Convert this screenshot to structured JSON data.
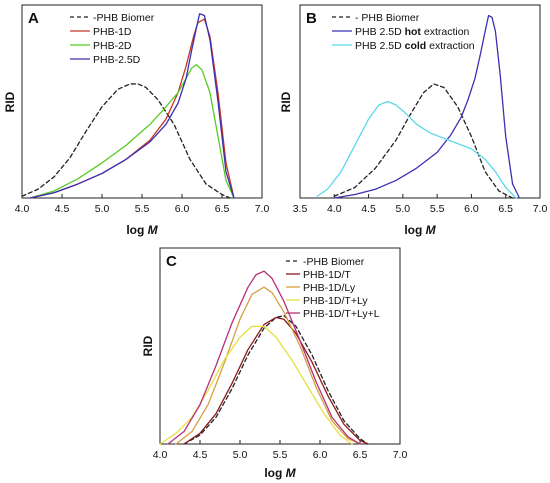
{
  "chart_data": [
    {
      "panel": "A",
      "type": "line",
      "xlabel_prefix": "log",
      "xlabel_var": "M",
      "ylabel": "RID",
      "xlim": [
        4.0,
        7.0
      ],
      "xticks": [
        "4.0",
        "4.5",
        "5.0",
        "5.5",
        "6.0",
        "6.5",
        "7.0"
      ],
      "legend_position": "top-left",
      "series": [
        {
          "name": "-PHB Biomer",
          "color": "#222222",
          "dash": true,
          "x": [
            4.0,
            4.2,
            4.4,
            4.6,
            4.8,
            5.0,
            5.2,
            5.35,
            5.45,
            5.55,
            5.7,
            5.9,
            6.1,
            6.3,
            6.5,
            6.6
          ],
          "y": [
            0.01,
            0.05,
            0.12,
            0.23,
            0.38,
            0.52,
            0.62,
            0.65,
            0.65,
            0.63,
            0.56,
            0.42,
            0.22,
            0.08,
            0.02,
            0.0
          ]
        },
        {
          "name": "PHB-1D",
          "color": "#c0392b",
          "dash": false,
          "x": [
            4.1,
            4.4,
            4.7,
            5.0,
            5.3,
            5.6,
            5.8,
            5.95,
            6.05,
            6.15,
            6.2,
            6.28,
            6.35,
            6.45,
            6.55,
            6.65
          ],
          "y": [
            0.0,
            0.03,
            0.08,
            0.14,
            0.22,
            0.33,
            0.45,
            0.6,
            0.75,
            0.93,
            1.0,
            1.02,
            0.92,
            0.6,
            0.2,
            0.0
          ]
        },
        {
          "name": "PHB-2D",
          "color": "#55cc22",
          "dash": false,
          "x": [
            4.1,
            4.4,
            4.7,
            5.0,
            5.3,
            5.6,
            5.8,
            5.95,
            6.05,
            6.12,
            6.18,
            6.25,
            6.35,
            6.45,
            6.55,
            6.65
          ],
          "y": [
            0.0,
            0.04,
            0.11,
            0.2,
            0.3,
            0.42,
            0.52,
            0.6,
            0.68,
            0.74,
            0.76,
            0.73,
            0.6,
            0.35,
            0.1,
            0.0
          ]
        },
        {
          "name": "PHB-2.5D",
          "color": "#3b30b5",
          "dash": false,
          "x": [
            4.1,
            4.4,
            4.7,
            5.0,
            5.3,
            5.6,
            5.8,
            5.95,
            6.05,
            6.12,
            6.18,
            6.22,
            6.28,
            6.35,
            6.45,
            6.55,
            6.65
          ],
          "y": [
            0.0,
            0.03,
            0.08,
            0.14,
            0.22,
            0.32,
            0.42,
            0.54,
            0.68,
            0.84,
            0.97,
            1.05,
            1.04,
            0.9,
            0.55,
            0.15,
            0.0
          ]
        }
      ]
    },
    {
      "panel": "B",
      "type": "line",
      "xlabel_prefix": "log",
      "xlabel_var": "M",
      "ylabel": "RID",
      "xlim": [
        3.5,
        7.0
      ],
      "xticks": [
        "3.5",
        "4.0",
        "4.5",
        "5.0",
        "5.5",
        "6.0",
        "6.5",
        "7.0"
      ],
      "legend_position": "top-left",
      "series": [
        {
          "name": "PHB Biomer",
          "prefix": "- ",
          "color": "#222222",
          "dash": true,
          "x": [
            4.0,
            4.3,
            4.6,
            4.9,
            5.1,
            5.3,
            5.45,
            5.6,
            5.8,
            6.0,
            6.2,
            6.4,
            6.6
          ],
          "y": [
            0.01,
            0.06,
            0.17,
            0.33,
            0.47,
            0.6,
            0.65,
            0.63,
            0.52,
            0.35,
            0.15,
            0.04,
            0.0
          ]
        },
        {
          "name": "PHB 2.5D ",
          "bold": "hot",
          "suffix": " extraction",
          "color": "#3b30b5",
          "dash": false,
          "x": [
            4.0,
            4.3,
            4.6,
            4.9,
            5.2,
            5.5,
            5.7,
            5.85,
            5.95,
            6.05,
            6.12,
            6.2,
            6.25,
            6.3,
            6.35,
            6.42,
            6.5,
            6.6,
            6.7
          ],
          "y": [
            0.0,
            0.02,
            0.05,
            0.1,
            0.17,
            0.26,
            0.36,
            0.46,
            0.56,
            0.68,
            0.8,
            0.95,
            1.04,
            1.03,
            0.95,
            0.7,
            0.35,
            0.08,
            0.0
          ]
        },
        {
          "name": "PHB 2.5D ",
          "bold": "cold",
          "suffix": " extraction",
          "color": "#5bd8e8",
          "dash": false,
          "x": [
            3.75,
            3.9,
            4.1,
            4.3,
            4.5,
            4.65,
            4.78,
            4.9,
            5.05,
            5.2,
            5.4,
            5.6,
            5.8,
            6.0,
            6.2,
            6.35,
            6.5,
            6.65
          ],
          "y": [
            0.01,
            0.05,
            0.15,
            0.3,
            0.45,
            0.53,
            0.55,
            0.53,
            0.48,
            0.42,
            0.37,
            0.34,
            0.31,
            0.28,
            0.22,
            0.15,
            0.06,
            0.0
          ]
        }
      ]
    },
    {
      "panel": "C",
      "type": "line",
      "xlabel_prefix": "log",
      "xlabel_var": "M",
      "ylabel": "RID",
      "xlim": [
        4.0,
        7.0
      ],
      "xticks": [
        "4.0",
        "4.5",
        "5.0",
        "5.5",
        "6.0",
        "6.5",
        "7.0"
      ],
      "legend_position": "top-right",
      "series": [
        {
          "name": "-PHB Biomer",
          "color": "#222222",
          "dash": true,
          "x": [
            4.3,
            4.5,
            4.7,
            4.9,
            5.1,
            5.3,
            5.45,
            5.55,
            5.7,
            5.9,
            6.1,
            6.3,
            6.5,
            6.6
          ],
          "y": [
            0.0,
            0.05,
            0.15,
            0.31,
            0.5,
            0.65,
            0.71,
            0.72,
            0.66,
            0.5,
            0.3,
            0.13,
            0.03,
            0.0
          ]
        },
        {
          "name": "PHB-1D/T",
          "color": "#8b1a1a",
          "dash": false,
          "x": [
            4.3,
            4.5,
            4.7,
            4.9,
            5.1,
            5.3,
            5.45,
            5.55,
            5.7,
            5.9,
            6.1,
            6.3,
            6.5,
            6.6
          ],
          "y": [
            0.0,
            0.06,
            0.17,
            0.34,
            0.53,
            0.67,
            0.71,
            0.7,
            0.62,
            0.46,
            0.27,
            0.11,
            0.02,
            0.0
          ]
        },
        {
          "name": "PHB-1D/Ly",
          "color": "#d4a040",
          "dash": false,
          "x": [
            4.2,
            4.4,
            4.6,
            4.8,
            5.0,
            5.15,
            5.3,
            5.4,
            5.55,
            5.75,
            5.95,
            6.15,
            6.35,
            6.5
          ],
          "y": [
            0.0,
            0.07,
            0.22,
            0.45,
            0.7,
            0.84,
            0.88,
            0.85,
            0.74,
            0.55,
            0.32,
            0.13,
            0.03,
            0.0
          ]
        },
        {
          "name": "PHB-1D/T+Ly",
          "color": "#e6e040",
          "dash": false,
          "x": [
            4.0,
            4.2,
            4.4,
            4.6,
            4.8,
            5.0,
            5.15,
            5.3,
            5.45,
            5.65,
            5.85,
            6.05,
            6.25,
            6.4
          ],
          "y": [
            0.0,
            0.06,
            0.15,
            0.3,
            0.47,
            0.6,
            0.66,
            0.66,
            0.6,
            0.47,
            0.32,
            0.17,
            0.05,
            0.0
          ]
        },
        {
          "name": "PHB-1D/T+Ly+L",
          "color": "#b5307a",
          "dash": false,
          "x": [
            4.1,
            4.3,
            4.5,
            4.7,
            4.9,
            5.1,
            5.2,
            5.3,
            5.4,
            5.55,
            5.75,
            5.95,
            6.15,
            6.35,
            6.5
          ],
          "y": [
            0.0,
            0.07,
            0.22,
            0.44,
            0.68,
            0.88,
            0.95,
            0.97,
            0.93,
            0.8,
            0.58,
            0.35,
            0.15,
            0.04,
            0.0
          ]
        }
      ]
    }
  ]
}
